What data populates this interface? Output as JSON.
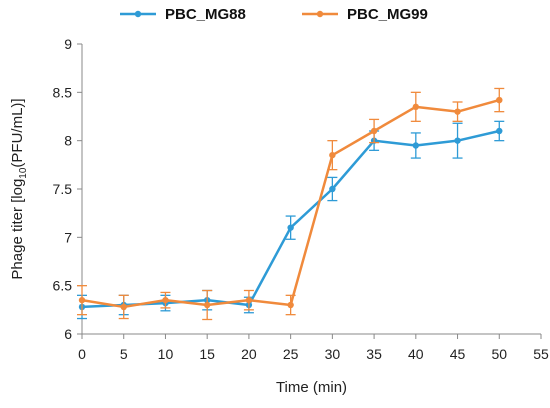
{
  "chart_data": {
    "type": "line",
    "xlabel": "Time (min)",
    "ylabel_prefix": "Phage titer [log",
    "ylabel_sub": "10",
    "ylabel_suffix": "(PFU/mL)]",
    "xlim": [
      0,
      55
    ],
    "ylim": [
      6,
      9
    ],
    "x_ticks": [
      "0",
      "5",
      "10",
      "15",
      "20",
      "25",
      "30",
      "35",
      "40",
      "45",
      "50",
      "55"
    ],
    "y_ticks": [
      "6",
      "6.5",
      "7",
      "7.5",
      "8",
      "8.5",
      "9"
    ],
    "grid": false,
    "legend_position": "top",
    "x": [
      0,
      5,
      10,
      15,
      20,
      25,
      30,
      35,
      40,
      45,
      50
    ],
    "series": [
      {
        "name": "PBC_MG88",
        "color": "#2E9BD6",
        "values": [
          6.28,
          6.3,
          6.32,
          6.35,
          6.3,
          7.1,
          7.5,
          8.0,
          7.95,
          8.0,
          8.1
        ],
        "errors": [
          0.12,
          0.1,
          0.08,
          0.1,
          0.08,
          0.12,
          0.12,
          0.1,
          0.13,
          0.18,
          0.1
        ]
      },
      {
        "name": "PBC_MG99",
        "color": "#F08A3C",
        "values": [
          6.35,
          6.28,
          6.35,
          6.3,
          6.35,
          6.3,
          7.85,
          8.1,
          8.35,
          8.3,
          8.42
        ],
        "errors": [
          0.15,
          0.12,
          0.08,
          0.15,
          0.1,
          0.1,
          0.15,
          0.12,
          0.15,
          0.1,
          0.12
        ]
      }
    ]
  }
}
